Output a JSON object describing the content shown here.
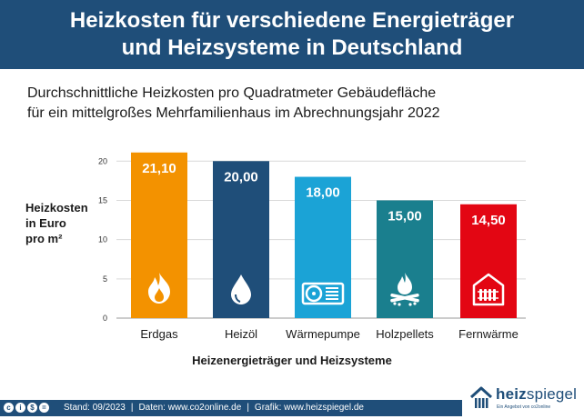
{
  "header": {
    "title_line1": "Heizkosten für verschiedene Energieträger",
    "title_line2": "und Heizsysteme in Deutschland"
  },
  "subtitle": {
    "line1": "Durchschnittliche Heizkosten pro Quadratmeter Gebäudefläche",
    "line2": "für ein mittelgroßes Mehrfamilienhaus im Abrechnungsjahr 2022"
  },
  "chart_data": {
    "type": "bar",
    "categories": [
      "Erdgas",
      "Heizöl",
      "Wärmepumpe",
      "Holzpellets",
      "Fernwärme"
    ],
    "values": [
      21.1,
      20.0,
      18.0,
      15.0,
      14.5
    ],
    "value_labels": [
      "21,10",
      "20,00",
      "18,00",
      "15,00",
      "14,50"
    ],
    "colors": [
      "#f39200",
      "#1f4e79",
      "#1ba3d6",
      "#1a7f8e",
      "#e30613"
    ],
    "icons": [
      "flame-icon",
      "oil-drop-icon",
      "heat-pump-icon",
      "pellets-fire-icon",
      "district-heating-icon"
    ],
    "ylabel_lines": [
      "Heizkosten",
      "in Euro",
      "pro m²"
    ],
    "xlabel": "Heizenergieträger und Heizsysteme",
    "ylim": [
      0,
      22
    ],
    "yticks": [
      0,
      5,
      10,
      15,
      20
    ],
    "grid": true
  },
  "footer": {
    "cc_icons": [
      "cc",
      "by",
      "nc",
      "nd"
    ],
    "stand": "Stand: 09/2023",
    "daten": "Daten: www.co2online.de",
    "grafik": "Grafik: www.heizspiegel.de",
    "separator": "|"
  },
  "logo": {
    "name_bold": "heiz",
    "name_thin": "spiegel",
    "tagline": "Ein Angebot von co2online"
  }
}
